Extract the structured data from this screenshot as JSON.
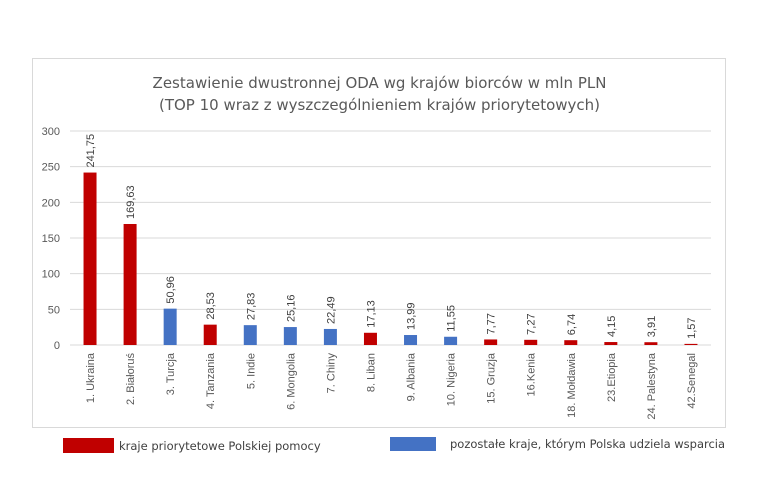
{
  "chart_data": {
    "type": "bar",
    "title": "Zestawienie dwustronnej ODA wg krajów biorców w mln PLN",
    "subtitle": "(TOP 10 wraz z wyszczególnieniem krajów priorytetowych)",
    "xlabel": "",
    "ylabel": "",
    "ylim": [
      0,
      300
    ],
    "yticks": [
      0,
      50,
      100,
      150,
      200,
      250,
      300
    ],
    "grid": true,
    "legend_position": "bottom",
    "categories": [
      "1. Ukraina",
      "2. Białoruś",
      "3. Turcja",
      "4. Tanzania",
      "5. Indie",
      "6. Mongolia",
      "7. Chiny",
      "8. Liban",
      "9. Albania",
      "10. Nigeria",
      "15. Gruzja",
      "16.Kenia",
      "18. Mołdawia",
      "23.Etiopia",
      "24. Palestyna",
      "42.Senegal"
    ],
    "values": [
      241.75,
      169.63,
      50.96,
      28.53,
      27.83,
      25.16,
      22.49,
      17.13,
      13.99,
      11.55,
      7.77,
      7.27,
      6.74,
      4.15,
      3.91,
      1.57
    ],
    "value_labels": [
      "241,75",
      "169,63",
      "50,96",
      "28,53",
      "27,83",
      "25,16",
      "22,49",
      "17,13",
      "13,99",
      "11,55",
      "7,77",
      "7,27",
      "6,74",
      "4,15",
      "3,91",
      "1,57"
    ],
    "groups": [
      "priority",
      "priority",
      "other",
      "priority",
      "other",
      "other",
      "other",
      "priority",
      "other",
      "other",
      "priority",
      "priority",
      "priority",
      "priority",
      "priority",
      "priority"
    ],
    "series": [
      {
        "key": "priority",
        "name": "kraje priorytetowe Polskiej pomocy",
        "color": "#c00000"
      },
      {
        "key": "other",
        "name": "pozostałe kraje, którym Polska udziela wsparcia",
        "color": "#4472c4"
      }
    ]
  },
  "colors": {
    "priority": "#c00000",
    "other": "#4472c4",
    "grid": "#d9d9d9",
    "text": "#595959"
  }
}
